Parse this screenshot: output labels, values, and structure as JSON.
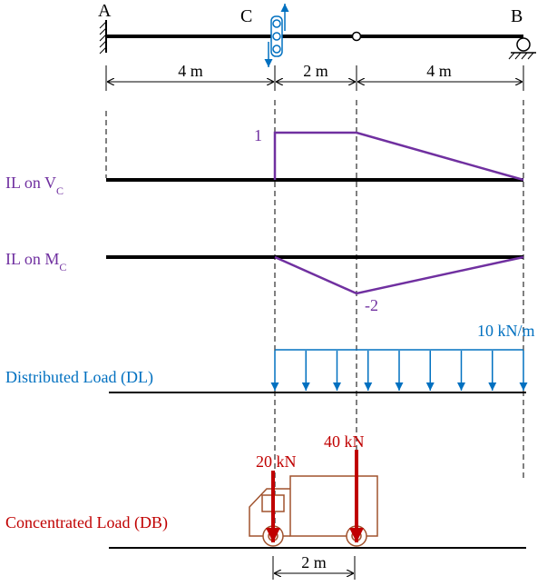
{
  "beam": {
    "support_a_label": "A",
    "point_c_label": "C",
    "support_b_label": "B",
    "span_ac": "4 m",
    "span_c_hinge": "2 m",
    "span_hinge_b": "4 m"
  },
  "influence_lines": {
    "vc_label_main": "IL on V",
    "vc_label_sub": "C",
    "vc_peak_label": "1",
    "mc_label_main": "IL on M",
    "mc_label_sub": "C",
    "mc_min_label": "-2"
  },
  "distributed_load": {
    "label": "Distributed Load (DL)",
    "intensity_label": "10 kN/m"
  },
  "concentrated_load": {
    "label": "Concentrated Load (DB)",
    "rear_axle_label": "20 kN",
    "front_axle_label": "40 kN",
    "axle_spacing_label": "2 m"
  },
  "colors": {
    "structure": "#000000",
    "influence_line": "#7030a0",
    "distributed_load": "#0070c0",
    "concentrated_load": "#c00000",
    "truck": "#a0522d"
  }
}
